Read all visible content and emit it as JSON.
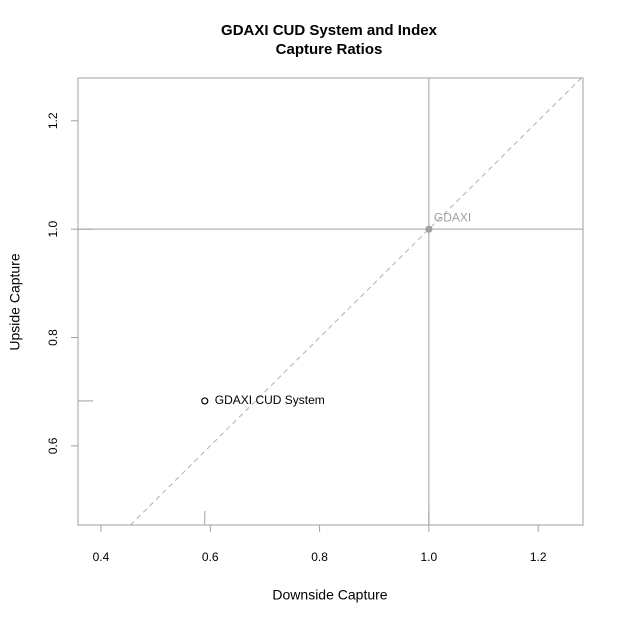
{
  "chart_data": {
    "type": "scatter",
    "title": [
      "GDAXI CUD System and Index",
      "Capture Ratios"
    ],
    "x_label": "Downside Capture",
    "y_label": "Upside Capture",
    "series": [
      {
        "name": "GDAXI CUD System",
        "x": [
          0.59
        ],
        "values": [
          0.683
        ],
        "color": "#000000",
        "filled": false
      },
      {
        "name": "GDAXI",
        "x": [
          1.0
        ],
        "values": [
          1.0
        ],
        "color": "#a0a0a0",
        "filled": true
      }
    ],
    "xlim": [
      0.358,
      1.282
    ],
    "ylim": [
      0.454,
      1.279
    ],
    "xticks": [
      0.4,
      0.6,
      0.8,
      {
        "value": 1,
        "label": "1.0"
      },
      1.2
    ],
    "yticks": [
      0.6,
      0.8,
      {
        "value": 1,
        "label": "1.0"
      },
      1.2
    ],
    "reference_lines": {
      "x": 1,
      "y": 1
    },
    "diagonal": true,
    "rug": true
  }
}
